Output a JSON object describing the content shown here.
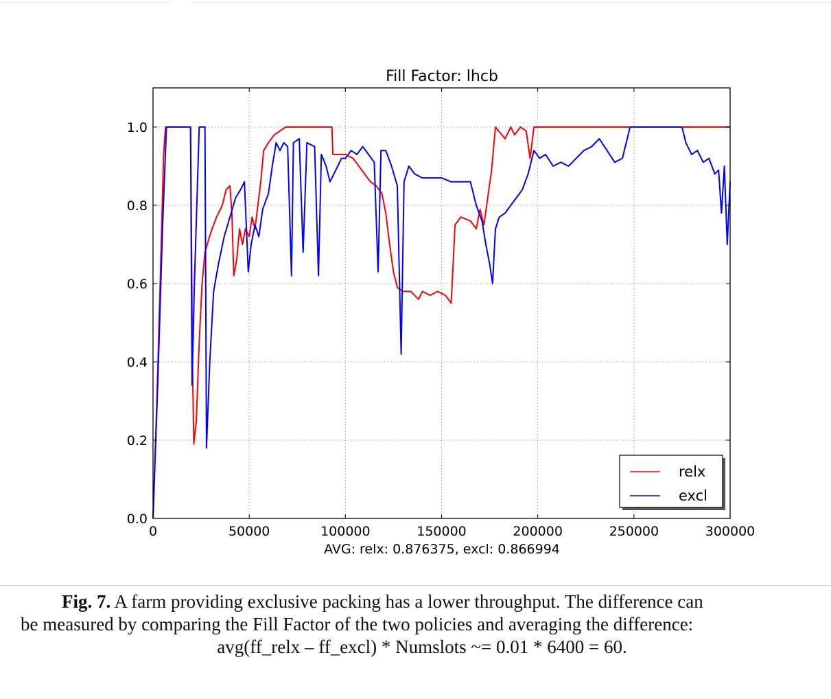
{
  "chart_data": {
    "type": "line",
    "title": "Fill Factor: lhcb",
    "xlabel": "AVG: relx: 0.876375, excl: 0.866994",
    "ylabel": "",
    "xlim": [
      0,
      300000
    ],
    "ylim": [
      0,
      1.1
    ],
    "xticks": [
      0,
      50000,
      100000,
      150000,
      200000,
      250000,
      300000
    ],
    "xtick_labels": [
      "0",
      "50000",
      "100000",
      "150000",
      "200000",
      "250000",
      "300000"
    ],
    "yticks": [
      0.0,
      0.2,
      0.4,
      0.6,
      0.8,
      1.0
    ],
    "ytick_labels": [
      "0.0",
      "0.2",
      "0.4",
      "0.6",
      "0.8",
      "1.0"
    ],
    "grid": true,
    "legend_position": "lower-right",
    "series": [
      {
        "name": "relx",
        "color": "#ff0000",
        "points": [
          [
            0,
            0.0
          ],
          [
            2000,
            0.3
          ],
          [
            4000,
            0.65
          ],
          [
            5500,
            0.93
          ],
          [
            6500,
            1.0
          ],
          [
            19500,
            1.0
          ],
          [
            20500,
            0.4
          ],
          [
            21200,
            0.19
          ],
          [
            22500,
            0.25
          ],
          [
            24000,
            0.45
          ],
          [
            25500,
            0.6
          ],
          [
            27000,
            0.68
          ],
          [
            30000,
            0.73
          ],
          [
            33000,
            0.77
          ],
          [
            36000,
            0.8
          ],
          [
            38000,
            0.84
          ],
          [
            40000,
            0.85
          ],
          [
            41000,
            0.78
          ],
          [
            42000,
            0.62
          ],
          [
            43500,
            0.66
          ],
          [
            45000,
            0.74
          ],
          [
            46500,
            0.7
          ],
          [
            48000,
            0.74
          ],
          [
            50000,
            0.72
          ],
          [
            51500,
            0.77
          ],
          [
            53000,
            0.74
          ],
          [
            54500,
            0.8
          ],
          [
            56000,
            0.86
          ],
          [
            57500,
            0.94
          ],
          [
            60000,
            0.96
          ],
          [
            63000,
            0.98
          ],
          [
            66000,
            0.99
          ],
          [
            69000,
            1.0
          ],
          [
            93000,
            1.0
          ],
          [
            93500,
            0.93
          ],
          [
            98000,
            0.93
          ],
          [
            100000,
            0.93
          ],
          [
            104000,
            0.92
          ],
          [
            107000,
            0.9
          ],
          [
            110000,
            0.88
          ],
          [
            113000,
            0.86
          ],
          [
            116000,
            0.85
          ],
          [
            119000,
            0.83
          ],
          [
            121000,
            0.78
          ],
          [
            123000,
            0.7
          ],
          [
            125000,
            0.63
          ],
          [
            127000,
            0.59
          ],
          [
            130000,
            0.58
          ],
          [
            134000,
            0.58
          ],
          [
            138000,
            0.56
          ],
          [
            140000,
            0.58
          ],
          [
            144000,
            0.57
          ],
          [
            148000,
            0.58
          ],
          [
            152000,
            0.57
          ],
          [
            155000,
            0.55
          ],
          [
            157000,
            0.75
          ],
          [
            160000,
            0.77
          ],
          [
            165000,
            0.76
          ],
          [
            168000,
            0.74
          ],
          [
            170000,
            0.79
          ],
          [
            172000,
            0.75
          ],
          [
            174000,
            0.82
          ],
          [
            176000,
            0.89
          ],
          [
            178000,
            1.0
          ],
          [
            183000,
            0.97
          ],
          [
            186000,
            1.0
          ],
          [
            188000,
            0.98
          ],
          [
            191000,
            1.0
          ],
          [
            194000,
            0.99
          ],
          [
            196000,
            0.92
          ],
          [
            198000,
            1.0
          ],
          [
            200000,
            1.0
          ],
          [
            300000,
            1.0
          ]
        ]
      },
      {
        "name": "excl",
        "color": "#0000ff",
        "points": [
          [
            0,
            0.0
          ],
          [
            2500,
            0.35
          ],
          [
            5000,
            0.75
          ],
          [
            7000,
            1.0
          ],
          [
            19500,
            1.0
          ],
          [
            20300,
            0.34
          ],
          [
            21500,
            0.6
          ],
          [
            24000,
            1.0
          ],
          [
            27000,
            1.0
          ],
          [
            27800,
            0.18
          ],
          [
            29500,
            0.4
          ],
          [
            31500,
            0.58
          ],
          [
            34000,
            0.65
          ],
          [
            37000,
            0.72
          ],
          [
            40000,
            0.77
          ],
          [
            43000,
            0.82
          ],
          [
            45500,
            0.84
          ],
          [
            47500,
            0.86
          ],
          [
            49500,
            0.63
          ],
          [
            51000,
            0.7
          ],
          [
            53000,
            0.75
          ],
          [
            55000,
            0.72
          ],
          [
            57000,
            0.79
          ],
          [
            60000,
            0.83
          ],
          [
            62000,
            0.9
          ],
          [
            64000,
            0.96
          ],
          [
            66000,
            0.94
          ],
          [
            68000,
            0.96
          ],
          [
            70000,
            0.95
          ],
          [
            72000,
            0.62
          ],
          [
            73000,
            0.96
          ],
          [
            76000,
            0.97
          ],
          [
            78000,
            0.68
          ],
          [
            80000,
            0.96
          ],
          [
            84000,
            0.95
          ],
          [
            86000,
            0.62
          ],
          [
            87500,
            0.93
          ],
          [
            90000,
            0.9
          ],
          [
            92000,
            0.86
          ],
          [
            94000,
            0.88
          ],
          [
            96000,
            0.9
          ],
          [
            98000,
            0.92
          ],
          [
            100000,
            0.92
          ],
          [
            103000,
            0.94
          ],
          [
            106000,
            0.93
          ],
          [
            109000,
            0.95
          ],
          [
            112000,
            0.93
          ],
          [
            115000,
            0.91
          ],
          [
            117000,
            0.63
          ],
          [
            118500,
            0.94
          ],
          [
            121000,
            0.94
          ],
          [
            124000,
            0.9
          ],
          [
            127000,
            0.85
          ],
          [
            129000,
            0.42
          ],
          [
            130500,
            0.86
          ],
          [
            133000,
            0.9
          ],
          [
            136000,
            0.88
          ],
          [
            140000,
            0.87
          ],
          [
            145000,
            0.87
          ],
          [
            150000,
            0.87
          ],
          [
            155000,
            0.86
          ],
          [
            160000,
            0.86
          ],
          [
            165000,
            0.86
          ],
          [
            168000,
            0.8
          ],
          [
            171000,
            0.76
          ],
          [
            173000,
            0.7
          ],
          [
            175000,
            0.65
          ],
          [
            176500,
            0.6
          ],
          [
            178000,
            0.74
          ],
          [
            180000,
            0.77
          ],
          [
            183000,
            0.78
          ],
          [
            186000,
            0.8
          ],
          [
            189000,
            0.82
          ],
          [
            192000,
            0.84
          ],
          [
            195000,
            0.88
          ],
          [
            198000,
            0.94
          ],
          [
            201000,
            0.92
          ],
          [
            204000,
            0.93
          ],
          [
            208000,
            0.9
          ],
          [
            212000,
            0.91
          ],
          [
            216000,
            0.9
          ],
          [
            220000,
            0.92
          ],
          [
            224000,
            0.94
          ],
          [
            228000,
            0.95
          ],
          [
            232000,
            0.97
          ],
          [
            236000,
            0.94
          ],
          [
            240000,
            0.91
          ],
          [
            244000,
            0.92
          ],
          [
            248000,
            1.0
          ],
          [
            275000,
            1.0
          ],
          [
            277000,
            0.96
          ],
          [
            280000,
            0.93
          ],
          [
            283000,
            0.94
          ],
          [
            286000,
            0.91
          ],
          [
            289000,
            0.92
          ],
          [
            292000,
            0.88
          ],
          [
            294000,
            0.89
          ],
          [
            295500,
            0.78
          ],
          [
            297000,
            0.9
          ],
          [
            298500,
            0.7
          ],
          [
            300000,
            0.86
          ]
        ]
      }
    ]
  },
  "caption": {
    "label": "Fig. 7.",
    "text_line1": "A farm providing exclusive packing has a lower throughput. The difference can",
    "text_line2": "be measured by comparing the Fill Factor of the two policies and averaging the difference:",
    "text_line3": "avg(ff_relx – ff_excl) * Numslots ~= 0.01 * 6400 = 60."
  }
}
